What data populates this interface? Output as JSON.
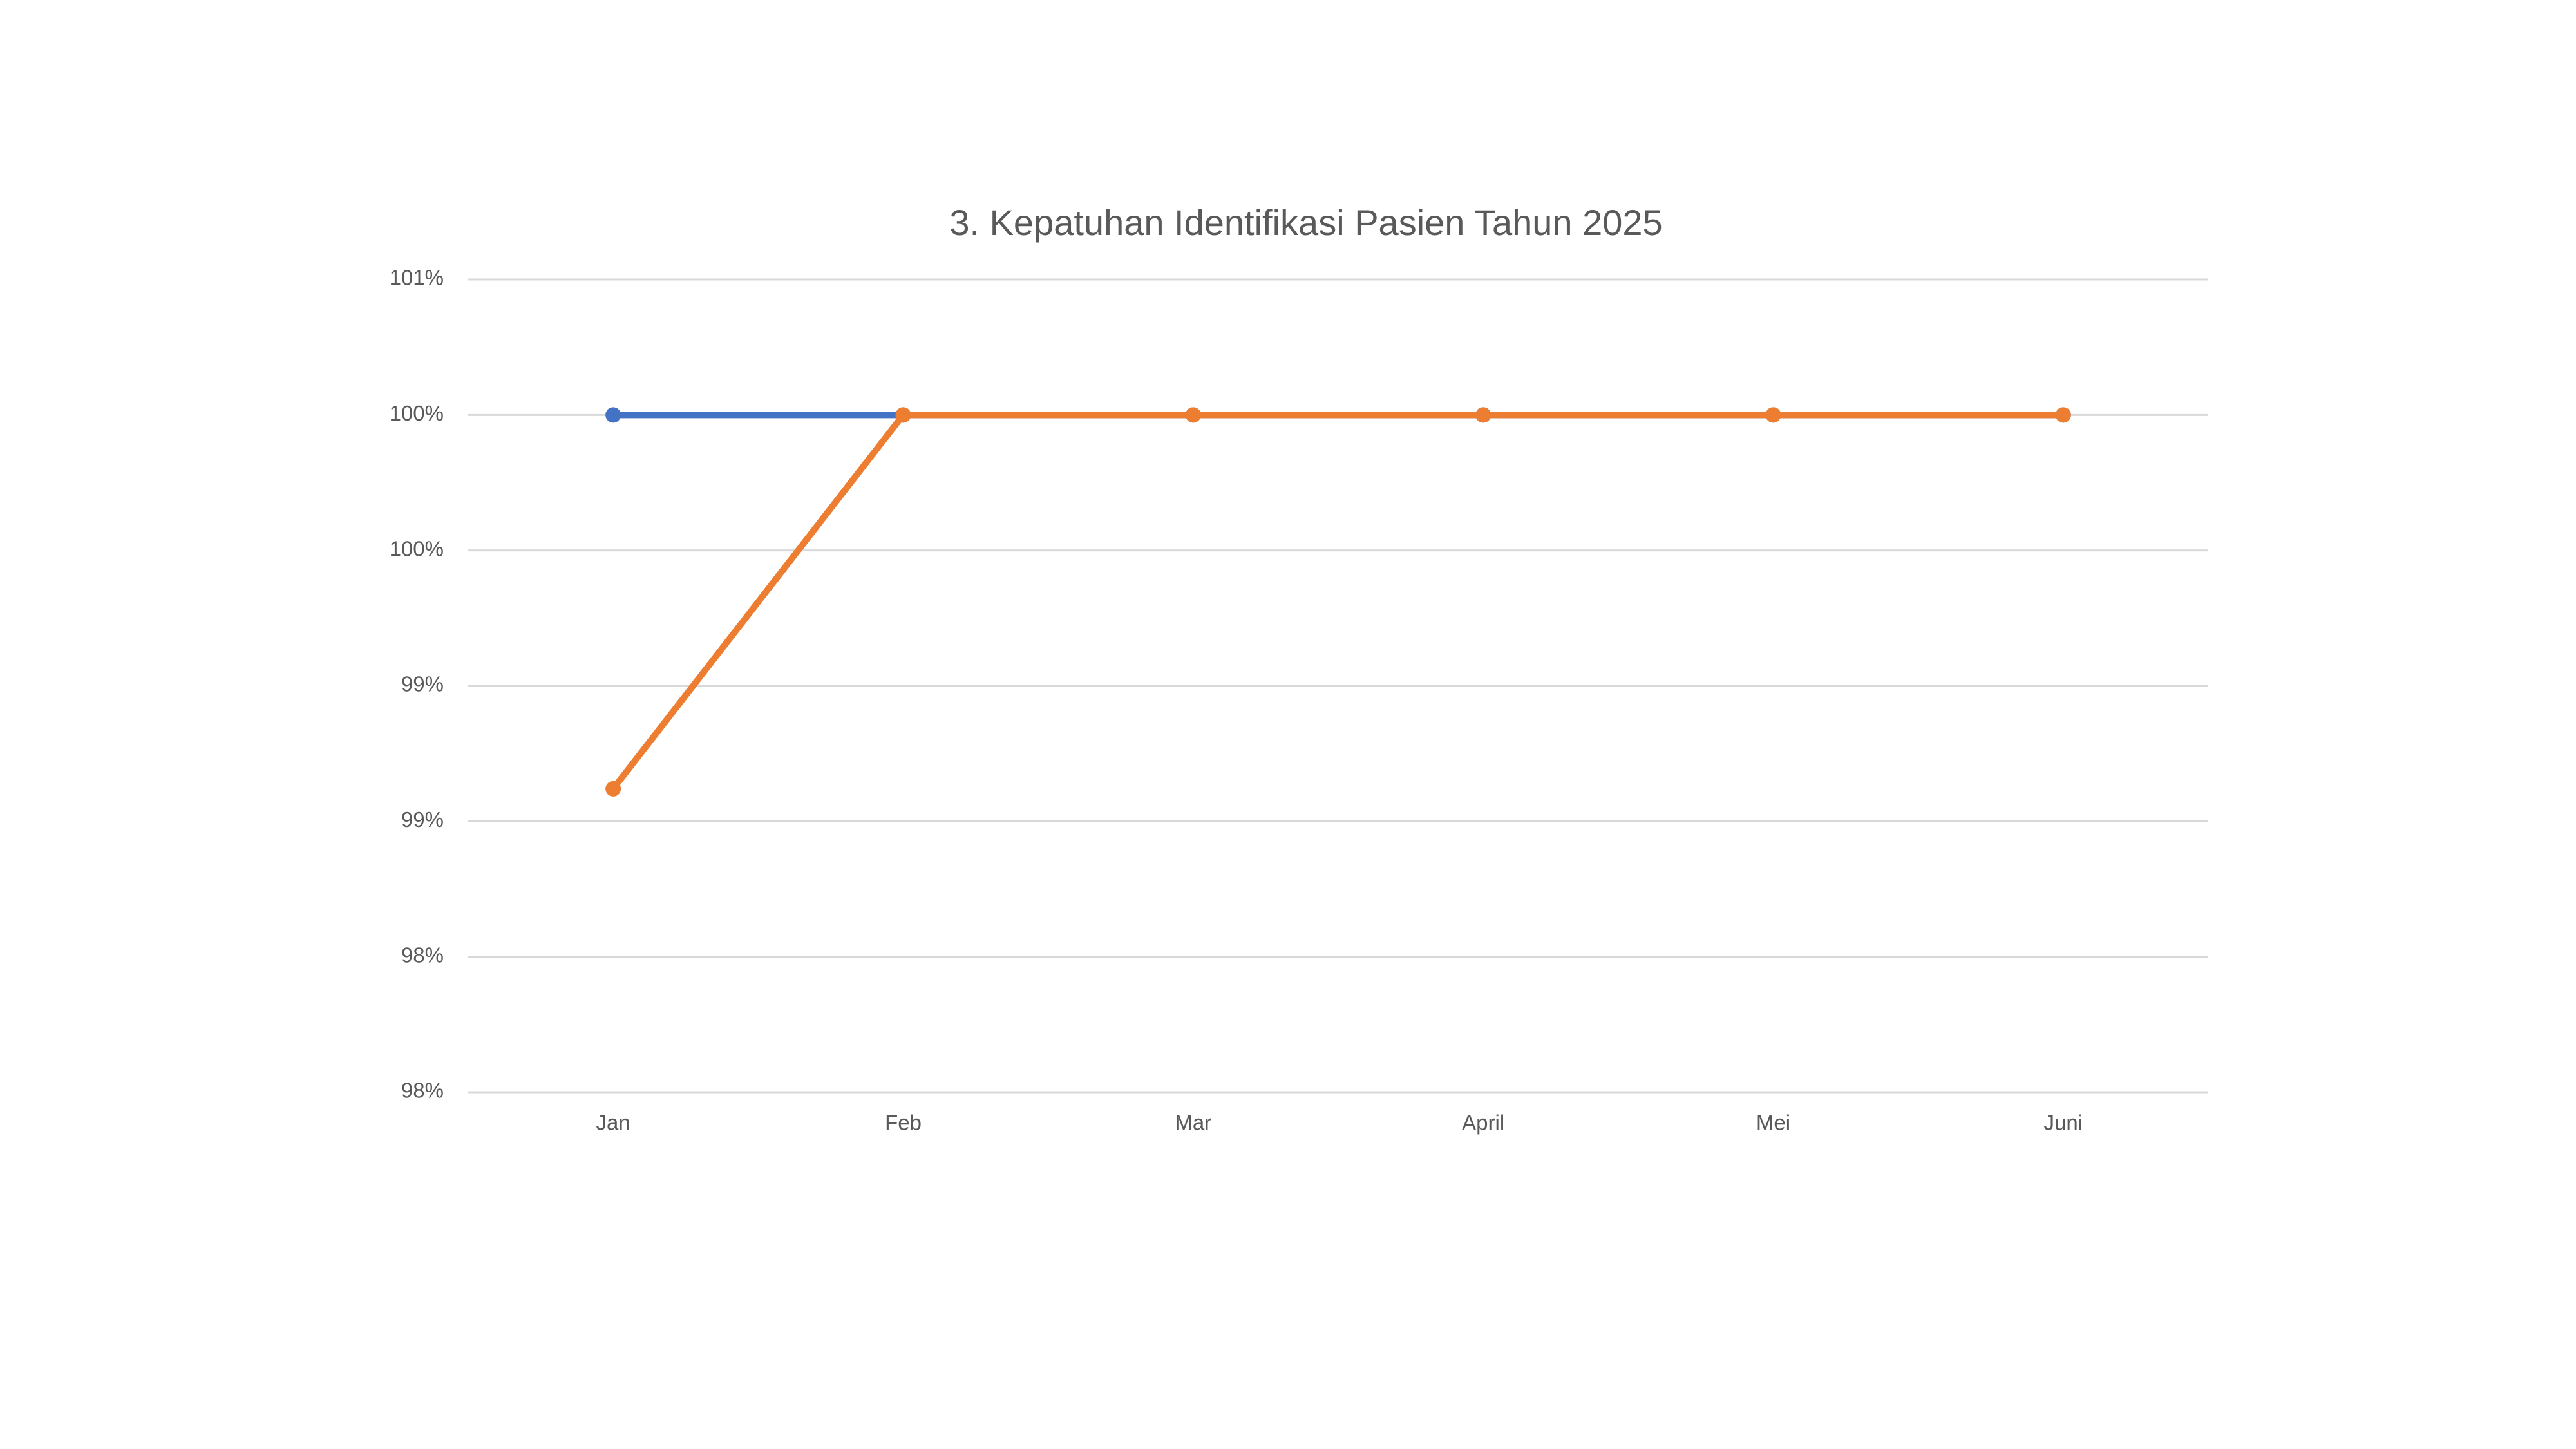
{
  "chart_data": {
    "type": "line",
    "title": "3. Kepatuhan Identifikasi Pasien Tahun 2025",
    "categories": [
      "Jan",
      "Feb",
      "Mar",
      "April",
      "Mei",
      "Juni"
    ],
    "series": [
      {
        "color": "#4472c4",
        "values": [
          100,
          100,
          100,
          100,
          100,
          100
        ]
      },
      {
        "color": "#ed7d31",
        "values": [
          98.62,
          100,
          100,
          100,
          100,
          100
        ]
      }
    ],
    "ylim": [
      97.5,
      100.5
    ],
    "yticks": [
      {
        "value": 97.5,
        "label": "98%"
      },
      {
        "value": 98,
        "label": "98%"
      },
      {
        "value": 98.5,
        "label": "99%"
      },
      {
        "value": 99,
        "label": "99%"
      },
      {
        "value": 99.5,
        "label": "100%"
      },
      {
        "value": 100,
        "label": "100%"
      },
      {
        "value": 100.5,
        "label": "101%"
      }
    ],
    "grid": true
  }
}
